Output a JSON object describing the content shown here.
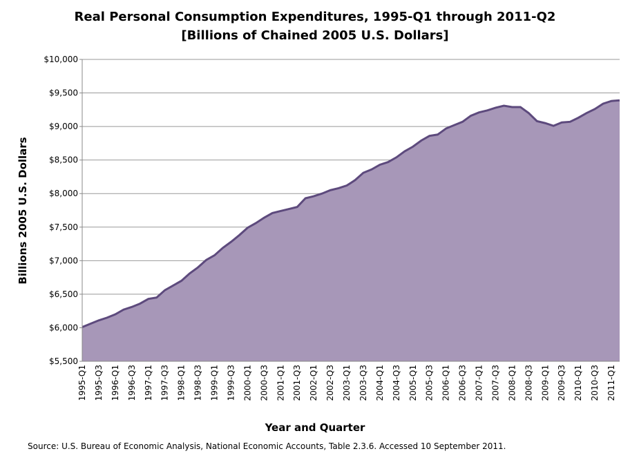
{
  "chart_data": {
    "type": "area",
    "title": "Real Personal Consumption Expenditures, 1995-Q1 through 2011-Q2",
    "subtitle": "[Billions of Chained 2005 U.S. Dollars]",
    "x_label": "Year and Quarter",
    "y_label": "Billions 2005 U.S. Dollars",
    "source": "Source: U.S. Bureau of Economic Analysis, National Economic Accounts,  Table 2.3.6.  Accessed 10 September  2011.",
    "categories": [
      "1995-Q1",
      null,
      "1995-Q3",
      null,
      "1996-Q1",
      null,
      "1996-Q3",
      null,
      "1997-Q1",
      null,
      "1997-Q3",
      null,
      "1998-Q1",
      null,
      "1998-Q3",
      null,
      "1999-Q1",
      null,
      "1999-Q3",
      null,
      "2000-Q1",
      null,
      "2000-Q3",
      null,
      "2001-Q1",
      null,
      "2001-Q3",
      null,
      "2002-Q1",
      null,
      "2002-Q3",
      null,
      "2003-Q1",
      null,
      "2003-Q3",
      null,
      "2004-Q1",
      null,
      "2004-Q3",
      null,
      "2005-Q1",
      null,
      "2005-Q3",
      null,
      "2006-Q1",
      null,
      "2006-Q3",
      null,
      "2007-Q1",
      null,
      "2007-Q3",
      null,
      "2008-Q1",
      null,
      "2008-Q3",
      null,
      "2009-Q1",
      null,
      "2009-Q3",
      null,
      "2010-Q1",
      null,
      "2010-Q3",
      null,
      "2011-Q1",
      null
    ],
    "values": [
      6010,
      6060,
      6110,
      6150,
      6200,
      6270,
      6310,
      6360,
      6430,
      6450,
      6560,
      6630,
      6700,
      6810,
      6900,
      7010,
      7080,
      7190,
      7280,
      7380,
      7490,
      7560,
      7640,
      7710,
      7740,
      7770,
      7800,
      7930,
      7960,
      8000,
      8050,
      8080,
      8120,
      8200,
      8310,
      8360,
      8430,
      8470,
      8540,
      8630,
      8700,
      8790,
      8860,
      8880,
      8970,
      9020,
      9070,
      9160,
      9210,
      9240,
      9280,
      9310,
      9290,
      9290,
      9200,
      9080,
      9050,
      9010,
      9060,
      9070,
      9130,
      9200,
      9260,
      9340,
      9380,
      9390
    ],
    "color": "#a797b8",
    "line_color": "#5d4a7d",
    "ylim": [
      5500,
      10000
    ],
    "yticks": [
      {
        "value": 5500,
        "label": "$5,500"
      },
      {
        "value": 6000,
        "label": "$6,000"
      },
      {
        "value": 6500,
        "label": "$6,500"
      },
      {
        "value": 7000,
        "label": "$7,000"
      },
      {
        "value": 7500,
        "label": "$7,500"
      },
      {
        "value": 8000,
        "label": "$8,000"
      },
      {
        "value": 8500,
        "label": "$8,500"
      },
      {
        "value": 9000,
        "label": "$9,000"
      },
      {
        "value": 9500,
        "label": "$9,500"
      },
      {
        "value": 10000,
        "label": "$10,000"
      }
    ],
    "grid": true
  }
}
